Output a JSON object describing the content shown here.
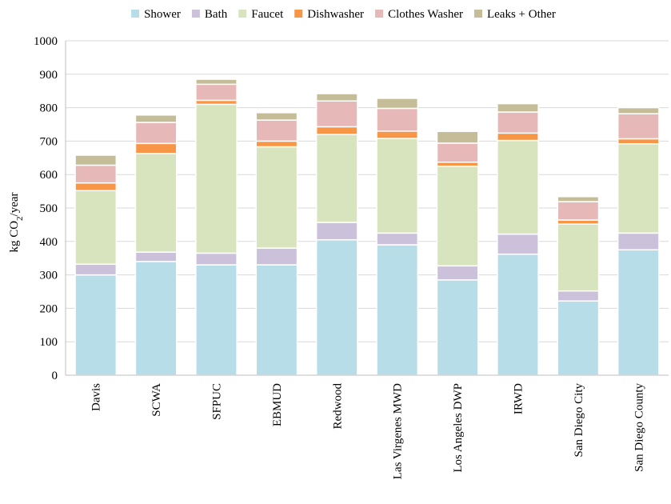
{
  "chart_data": {
    "type": "bar",
    "stacked": true,
    "categories": [
      "Davis",
      "SCWA",
      "SFPUC",
      "EBMUD",
      "Redwood",
      "Las Virgenes MWD",
      "Los Angeles DWP",
      "IRWD",
      "San Diego City",
      "San Diego County"
    ],
    "series": [
      {
        "name": "Shower",
        "color": "#b7dde8",
        "values": [
          300,
          340,
          330,
          330,
          405,
          390,
          285,
          362,
          222,
          375
        ]
      },
      {
        "name": "Bath",
        "color": "#ccc1da",
        "values": [
          32,
          28,
          35,
          50,
          52,
          35,
          42,
          60,
          30,
          50
        ]
      },
      {
        "name": "Faucet",
        "color": "#d7e4bd",
        "values": [
          220,
          295,
          445,
          303,
          263,
          283,
          298,
          280,
          200,
          267
        ]
      },
      {
        "name": "Dishwasher",
        "color": "#f79646",
        "values": [
          23,
          30,
          12,
          17,
          23,
          22,
          12,
          22,
          12,
          15
        ]
      },
      {
        "name": "Clothes Washer",
        "color": "#e6b9b8",
        "values": [
          53,
          63,
          48,
          63,
          77,
          68,
          57,
          63,
          55,
          75
        ]
      },
      {
        "name": "Leaks + Other",
        "color": "#c4bd97",
        "values": [
          30,
          22,
          15,
          22,
          22,
          30,
          35,
          25,
          15,
          18
        ]
      }
    ],
    "ylabel_main": "kg CO",
    "ylabel_sub": "2",
    "ylabel_tail": "/year",
    "ylim": [
      0,
      1000
    ],
    "yticks": [
      0,
      100,
      200,
      300,
      400,
      500,
      600,
      700,
      800,
      900,
      1000
    ],
    "grid": true,
    "legend_position": "top"
  }
}
